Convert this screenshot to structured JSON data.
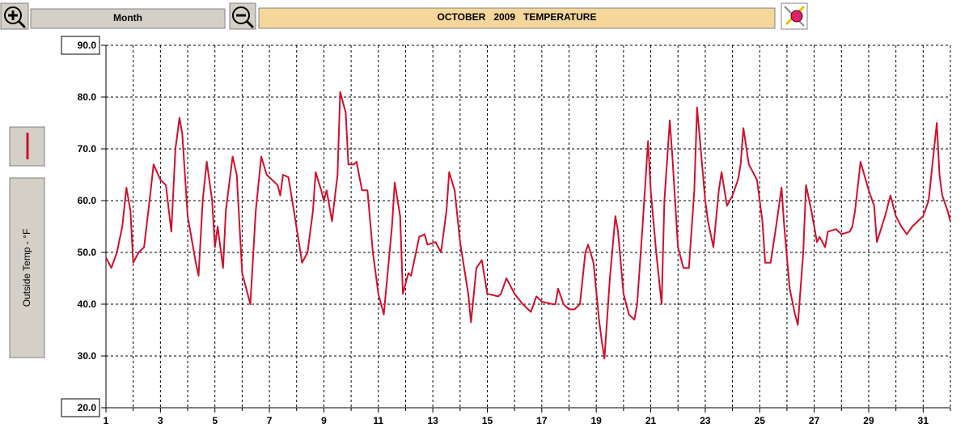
{
  "toolbar": {
    "period": "Month"
  },
  "chart_data": {
    "type": "line",
    "title": "OCTOBER   2009   TEMPERATURE",
    "y_label": "Outside Temp - °F",
    "color": "#d0102c",
    "grid": true,
    "x": [
      1,
      1.2,
      1.4,
      1.6,
      1.75,
      1.9,
      2,
      2.2,
      2.4,
      2.6,
      2.75,
      3,
      3.2,
      3.4,
      3.55,
      3.7,
      3.8,
      4,
      4.3,
      4.4,
      4.55,
      4.7,
      4.9,
      5,
      5.1,
      5.3,
      5.4,
      5.65,
      5.8,
      6,
      6.3,
      6.5,
      6.7,
      6.9,
      7.3,
      7.4,
      7.5,
      7.7,
      7.9,
      8.2,
      8.4,
      8.6,
      8.7,
      8.9,
      9,
      9.1,
      9.3,
      9.5,
      9.6,
      9.8,
      9.9,
      10.1,
      10.2,
      10.4,
      10.6,
      10.8,
      11,
      11.2,
      11.5,
      11.6,
      11.8,
      11.9,
      12.1,
      12.2,
      12.5,
      12.7,
      12.8,
      13.1,
      13.3,
      13.5,
      13.6,
      13.8,
      14,
      14.3,
      14.4,
      14.6,
      14.8,
      15,
      15.4,
      15.5,
      15.7,
      16,
      16.3,
      16.6,
      16.8,
      17,
      17.4,
      17.5,
      17.6,
      17.8,
      18,
      18.2,
      18.4,
      18.6,
      18.7,
      18.9,
      19.1,
      19.2,
      19.3,
      19.5,
      19.7,
      19.8,
      20,
      20.2,
      20.4,
      20.5,
      20.7,
      20.9,
      21,
      21.2,
      21.4,
      21.5,
      21.7,
      21.8,
      22,
      22.2,
      22.4,
      22.6,
      22.7,
      22.8,
      23,
      23.1,
      23.3,
      23.5,
      23.6,
      23.8,
      24,
      24.2,
      24.3,
      24.4,
      24.6,
      24.9,
      25.1,
      25.2,
      25.4,
      25.6,
      25.8,
      25.9,
      26.1,
      26.3,
      26.4,
      26.6,
      26.7,
      26.9,
      27.1,
      27.2,
      27.4,
      27.5,
      27.8,
      28,
      28.3,
      28.4,
      28.5,
      28.7,
      29,
      29.2,
      29.3,
      29.6,
      29.8,
      30,
      30.2,
      30.4,
      30.6,
      30.8,
      31,
      31.2,
      31.4,
      31.5,
      31.6,
      31.7,
      31.9,
      32
    ],
    "values": [
      49,
      47,
      50,
      55,
      62.5,
      58,
      48,
      50,
      51,
      60,
      67,
      64,
      63,
      54,
      70,
      76,
      73,
      57,
      48,
      45.5,
      60,
      67.5,
      60,
      51,
      55,
      47,
      58,
      68.5,
      65,
      46,
      40,
      58,
      68.5,
      65,
      63,
      61,
      65,
      64.5,
      58,
      48,
      50,
      58,
      65.5,
      62,
      60,
      62,
      56,
      65,
      81,
      77,
      67,
      67,
      67.5,
      62,
      62,
      50,
      42,
      38,
      55,
      63.5,
      57,
      42,
      46,
      45.5,
      53,
      53.5,
      51.5,
      52,
      50,
      58,
      65.5,
      62,
      52,
      42,
      36.5,
      47,
      48.5,
      42,
      41.5,
      42,
      45,
      42,
      40,
      38.5,
      41.5,
      40.5,
      40,
      40,
      43,
      40,
      39,
      39,
      40,
      50,
      51.5,
      48,
      37,
      33,
      29.5,
      45,
      57,
      54,
      42,
      38,
      37,
      40,
      55,
      71.5,
      62,
      50,
      40,
      60,
      75.5,
      68,
      51,
      47,
      47,
      62,
      78,
      72,
      60,
      56,
      51,
      62,
      65.5,
      59,
      61,
      64,
      67,
      74,
      67,
      64,
      56,
      48,
      48,
      55,
      62.5,
      55,
      43,
      38,
      36,
      50,
      63,
      58,
      52,
      53,
      51,
      54,
      54.5,
      53.5,
      54,
      55,
      58,
      67.5,
      62,
      59,
      52,
      57,
      61,
      57,
      55,
      53.5,
      55,
      56,
      57,
      60,
      70,
      75,
      65,
      61,
      58,
      56
    ],
    "xlim": [
      1,
      32
    ],
    "xticks": [
      1,
      3,
      5,
      7,
      9,
      11,
      13,
      15,
      17,
      19,
      21,
      23,
      25,
      27,
      29,
      31
    ],
    "xminorticks": [
      2,
      4,
      6,
      8,
      10,
      12,
      14,
      16,
      18,
      20,
      22,
      24,
      26,
      28,
      30,
      32
    ],
    "ylim": [
      20,
      90
    ],
    "yticks": [
      {
        "value": 20,
        "label": "20.0"
      },
      {
        "value": 30,
        "label": "30.0"
      },
      {
        "value": 40,
        "label": "40.0"
      },
      {
        "value": 50,
        "label": "50.0"
      },
      {
        "value": 60,
        "label": "60.0"
      },
      {
        "value": 70,
        "label": "70.0"
      },
      {
        "value": 80,
        "label": "80.0"
      },
      {
        "value": 90,
        "label": "90.0"
      }
    ]
  }
}
